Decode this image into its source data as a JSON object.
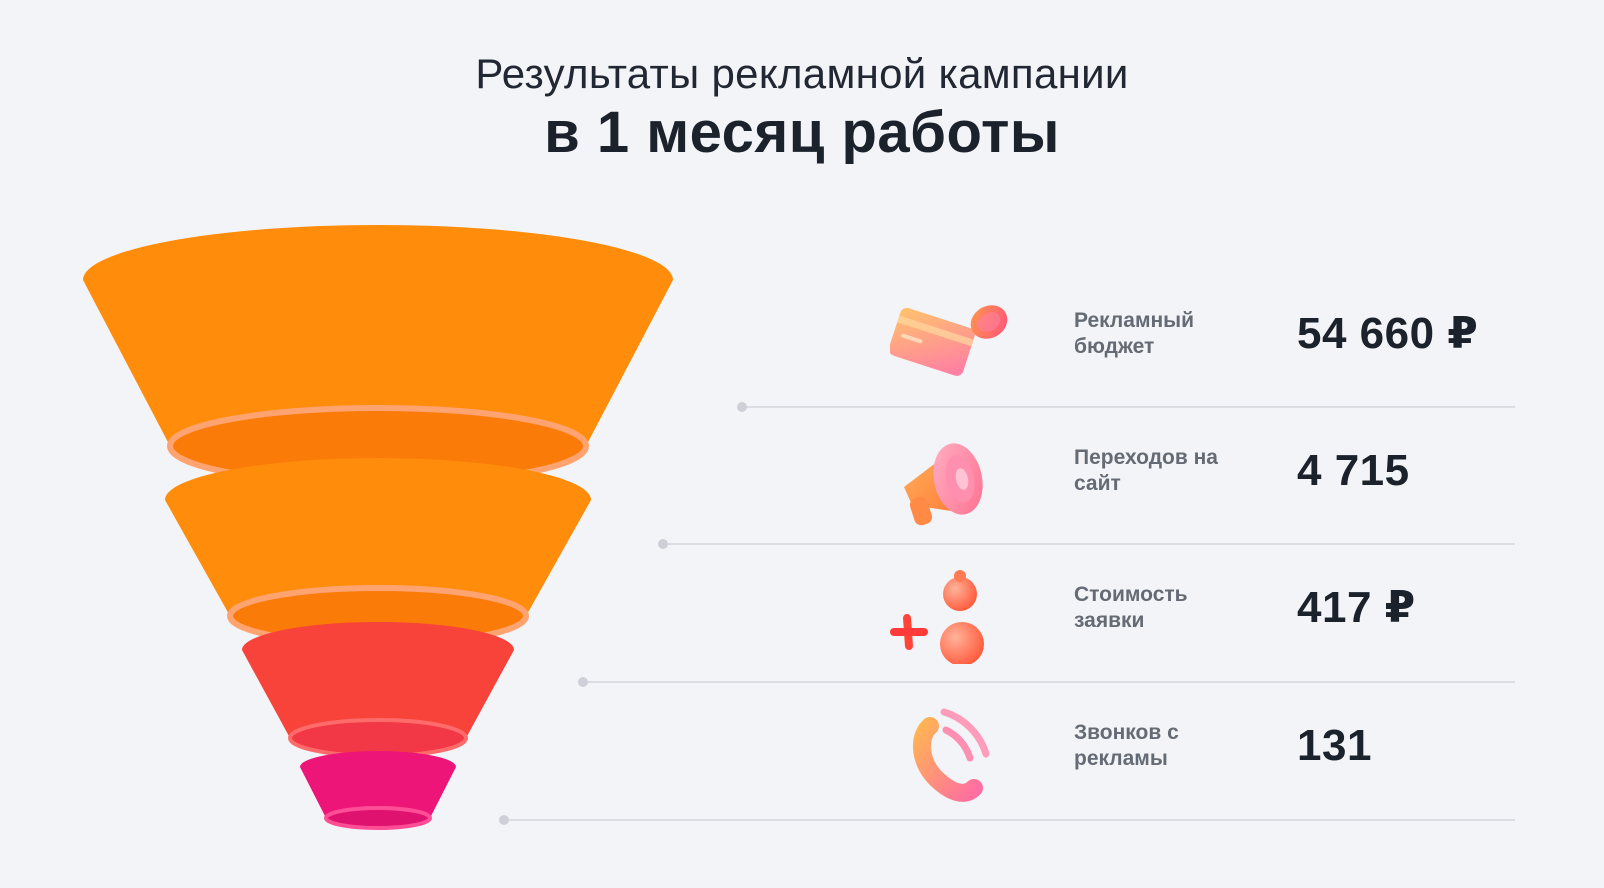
{
  "title": {
    "line1": "Результаты рекламной кампании",
    "line2": "в 1 месяц работы"
  },
  "colors": {
    "funnel": [
      "#ff8c0a",
      "#ff8c0a",
      "#f7433a",
      "#ee1578"
    ],
    "funnel_inner": [
      "#fa7b08",
      "#fa7b08",
      "#f23846",
      "#e01270"
    ],
    "funnel_rim": [
      "#ffa370",
      "#ffa370",
      "#ff6b6b",
      "#ff4e95"
    ]
  },
  "metrics": [
    {
      "label": "Рекламный бюджет",
      "value": "54 660 ₽",
      "icon": "credit-card-coin-icon"
    },
    {
      "label": "Переходов на сайт",
      "value": "4 715",
      "icon": "megaphone-icon"
    },
    {
      "label": "Стоимость заявки",
      "value": "417 ₽",
      "icon": "plus-user-icon"
    },
    {
      "label": "Звонков с рекламы",
      "value": "131",
      "icon": "phone-call-icon"
    }
  ]
}
